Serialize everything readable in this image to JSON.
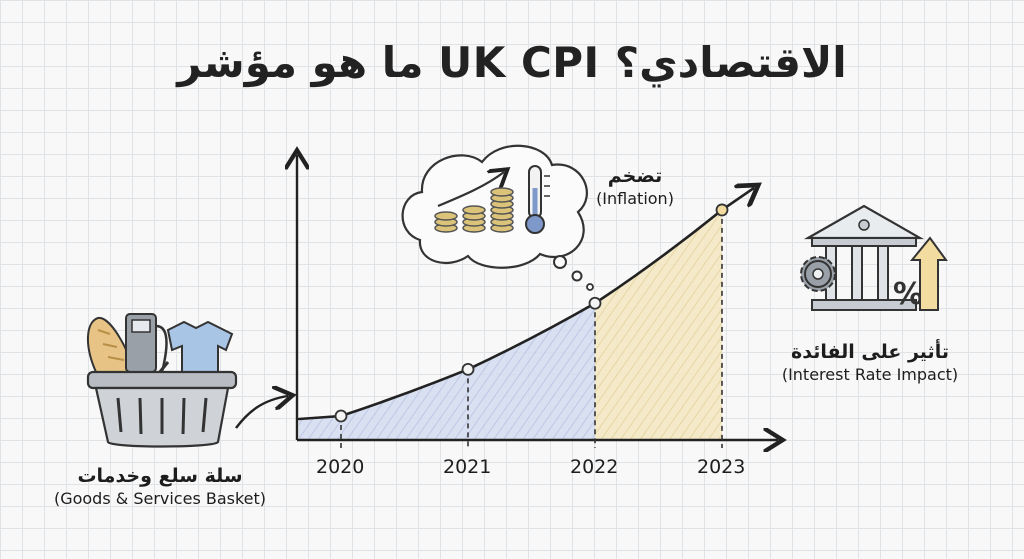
{
  "title": "ما هو مؤشر UK CPI الاقتصادي؟",
  "basket": {
    "label_ar": "سلة سلع وخدمات",
    "label_en": "(Goods & Services Basket)",
    "icon": "shopping-basket-icon"
  },
  "inflation": {
    "label_ar": "تضخم",
    "label_en": "(Inflation)",
    "icon": "thought-cloud-coins-thermometer-icon"
  },
  "interest": {
    "label_ar": "تأثير على الفائدة",
    "label_en": "(Interest Rate Impact)",
    "icon": "bank-gear-percent-icon"
  },
  "chart_data": {
    "type": "line",
    "categories": [
      "2020",
      "2021",
      "2022",
      "2023"
    ],
    "x": [
      "2020",
      "2021",
      "2022",
      "2023"
    ],
    "values": [
      1,
      2.2,
      3.9,
      6.3
    ],
    "title": "",
    "xlabel": "",
    "ylabel": "",
    "grid": false,
    "colors": {
      "line": "#222222",
      "fill_early": "#c7d1ea",
      "fill_late": "#f0e1b3",
      "point_late": "#f2dca0"
    }
  }
}
